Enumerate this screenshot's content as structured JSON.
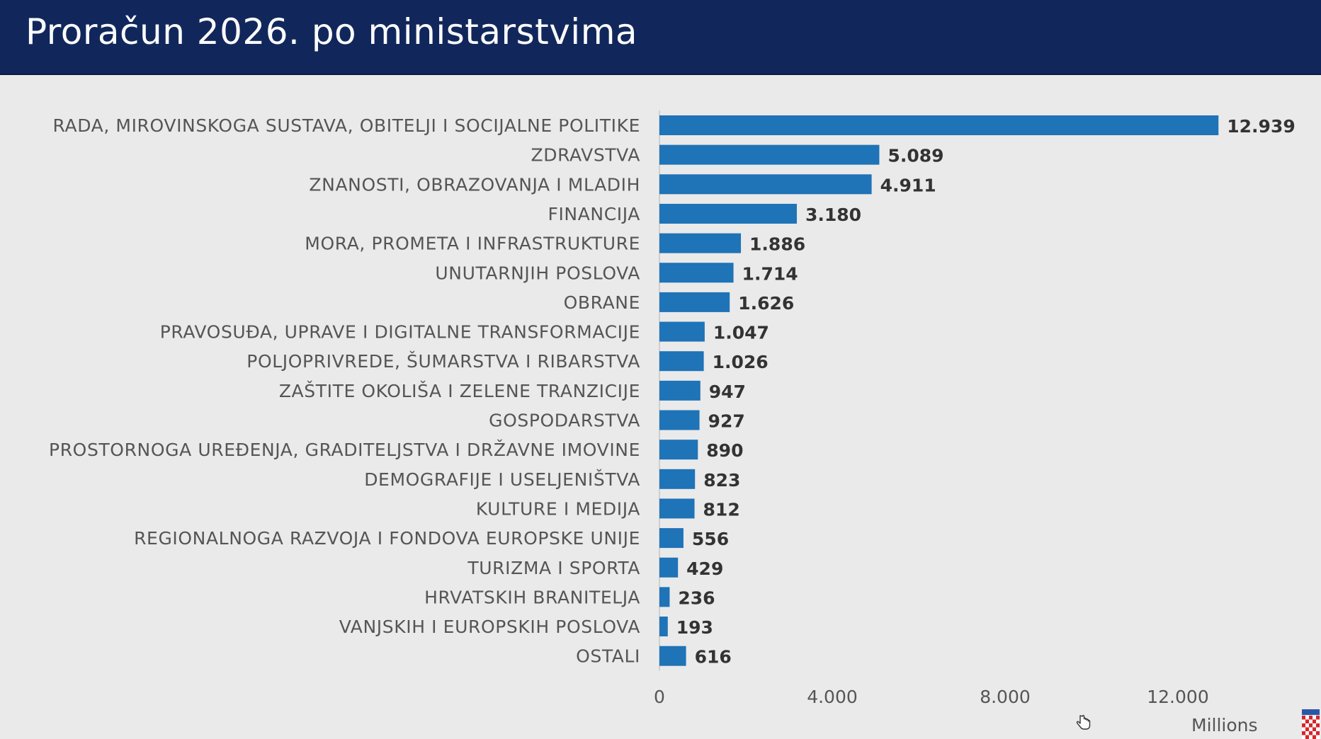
{
  "header": {
    "title": "Proračun 2026. po ministarstvima"
  },
  "chart_data": {
    "type": "bar",
    "orientation": "horizontal",
    "title": "Proračun 2026. po ministarstvima",
    "categories": [
      "RADA, MIROVINSKOGA SUSTAVA, OBITELJI I SOCIJALNE POLITIKE",
      "ZDRAVSTVA",
      "ZNANOSTI, OBRAZOVANJA I MLADIH",
      "FINANCIJA",
      "MORA, PROMETA I INFRASTRUKTURE",
      "UNUTARNJIH POSLOVA",
      "OBRANE",
      "PRAVOSUĐA, UPRAVE I DIGITALNE TRANSFORMACIJE",
      "POLJOPRIVREDE, ŠUMARSTVA I RIBARSTVA",
      "ZAŠTITE OKOLIŠA I ZELENE TRANZICIJE",
      "GOSPODARSTVA",
      "PROSTORNOGA UREĐENJA, GRADITELJSTVA I DRŽAVNE IMOVINE",
      "DEMOGRAFIJE I USELJENIŠTVA",
      "KULTURE I MEDIJA",
      "REGIONALNOGA RAZVOJA I FONDOVA EUROPSKE UNIJE",
      "TURIZMA I SPORTA",
      "HRVATSKIH BRANITELJA",
      "VANJSKIH I EUROPSKIH POSLOVA",
      "OSTALI"
    ],
    "values": [
      12939,
      5089,
      4911,
      3180,
      1886,
      1714,
      1626,
      1047,
      1026,
      947,
      927,
      890,
      823,
      812,
      556,
      429,
      236,
      193,
      616
    ],
    "value_labels": [
      "12.939",
      "5.089",
      "4.911",
      "3.180",
      "1.886",
      "1.714",
      "1.626",
      "1.047",
      "1.026",
      "947",
      "927",
      "890",
      "823",
      "812",
      "556",
      "429",
      "236",
      "193",
      "616"
    ],
    "xlim": [
      0,
      14000
    ],
    "x_ticks": [
      0,
      4000,
      8000,
      12000
    ],
    "x_tick_labels": [
      "0",
      "4.000",
      "8.000",
      "12.000"
    ],
    "xlabel": "Millions",
    "ylabel": "",
    "bar_color": "#1f73b7",
    "grid": false
  },
  "footer": {
    "units_label": "Millions",
    "cursor_icon": "hand-cursor-icon",
    "flag_icon": "croatian-coat-of-arms-icon"
  }
}
